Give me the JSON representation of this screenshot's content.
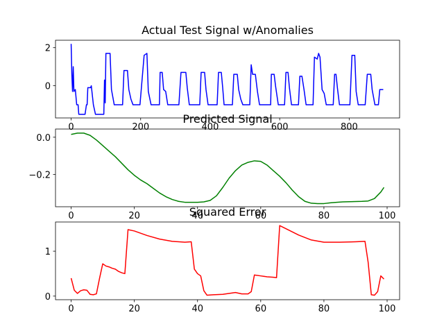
{
  "chart_data": [
    {
      "type": "line",
      "title": "Actual Test Signal w/Anomalies",
      "color": "#0000ff",
      "x": [
        0,
        2,
        4,
        6,
        8,
        12,
        16,
        20,
        22,
        40,
        44,
        46,
        48,
        56,
        58,
        64,
        70,
        94,
        96,
        98,
        100,
        112,
        116,
        124,
        148,
        152,
        162,
        166,
        172,
        178,
        198,
        210,
        218,
        222,
        230,
        254,
        256,
        262,
        266,
        272,
        278,
        310,
        316,
        330,
        334,
        340,
        370,
        374,
        384,
        388,
        394,
        420,
        424,
        432,
        436,
        440,
        464,
        468,
        478,
        482,
        488,
        494,
        514,
        518,
        522,
        530,
        536,
        542,
        574,
        576,
        584,
        588,
        596,
        614,
        618,
        624,
        628,
        634,
        654,
        658,
        664,
        670,
        676,
        696,
        700,
        708,
        712,
        716,
        722,
        728,
        734,
        754,
        758,
        762,
        766,
        772,
        802,
        808,
        816,
        820,
        826,
        846,
        852,
        862,
        866,
        874,
        884,
        888,
        898
      ],
      "values": [
        2.2,
        0.6,
        -0.3,
        1.0,
        -0.3,
        -0.2,
        -1.0,
        -1.0,
        -1.5,
        -1.5,
        -1.0,
        -1.0,
        -0.1,
        -0.1,
        0.0,
        -1.0,
        -1.5,
        -1.5,
        0.3,
        -0.9,
        1.7,
        1.7,
        -0.2,
        -1.0,
        -1.0,
        0.8,
        0.8,
        -0.2,
        -0.7,
        -1.0,
        -1.0,
        1.6,
        1.7,
        -0.3,
        -1.0,
        -1.0,
        0.7,
        0.7,
        -0.2,
        -0.3,
        -1.0,
        -1.0,
        0.7,
        0.7,
        -0.1,
        -1.0,
        -1.0,
        0.7,
        0.7,
        -0.2,
        -1.0,
        -1.0,
        0.7,
        0.7,
        -0.1,
        -1.0,
        -1.0,
        0.6,
        0.6,
        -0.2,
        -0.7,
        -1.0,
        -1.0,
        1.1,
        0.6,
        0.6,
        -0.3,
        -1.0,
        -1.0,
        0.6,
        0.6,
        0.0,
        -1.0,
        -1.0,
        0.7,
        0.7,
        -0.1,
        -1.0,
        -1.0,
        0.5,
        0.5,
        -0.2,
        -1.0,
        -1.0,
        1.5,
        1.4,
        1.7,
        1.5,
        -0.2,
        -0.4,
        -1.0,
        -1.0,
        0.6,
        0.6,
        -0.1,
        -1.0,
        -1.0,
        1.6,
        1.6,
        -0.3,
        -1.0,
        -1.0,
        0.6,
        0.6,
        -0.2,
        -1.0,
        -1.0,
        -0.2,
        -0.2
      ],
      "xlim": [
        -45,
        945
      ],
      "ylim": [
        -1.69,
        2.39
      ],
      "xticks": [
        0,
        200,
        400,
        600,
        800
      ],
      "yticks": [
        0,
        2
      ]
    },
    {
      "type": "line",
      "title": "Predicted Signal",
      "color": "#008000",
      "x": [
        0,
        2,
        4,
        6,
        8,
        10,
        12,
        14,
        16,
        18,
        20,
        22,
        24,
        26,
        28,
        30,
        32,
        34,
        36,
        38,
        40,
        42,
        44,
        46,
        48,
        50,
        52,
        54,
        56,
        58,
        60,
        62,
        64,
        66,
        68,
        70,
        72,
        74,
        76,
        78,
        80,
        82,
        84,
        86,
        88,
        90,
        92,
        94,
        96,
        98,
        99
      ],
      "values": [
        0.015,
        0.022,
        0.022,
        0.01,
        -0.015,
        -0.045,
        -0.075,
        -0.105,
        -0.14,
        -0.175,
        -0.205,
        -0.23,
        -0.25,
        -0.275,
        -0.3,
        -0.32,
        -0.335,
        -0.345,
        -0.35,
        -0.35,
        -0.35,
        -0.348,
        -0.34,
        -0.315,
        -0.27,
        -0.22,
        -0.18,
        -0.15,
        -0.135,
        -0.127,
        -0.13,
        -0.15,
        -0.18,
        -0.21,
        -0.245,
        -0.285,
        -0.32,
        -0.345,
        -0.355,
        -0.357,
        -0.357,
        -0.353,
        -0.35,
        -0.348,
        -0.347,
        -0.346,
        -0.345,
        -0.343,
        -0.33,
        -0.295,
        -0.27
      ],
      "xlim": [
        -4.95,
        103.95
      ],
      "ylim": [
        -0.374,
        0.044
      ],
      "xticks": [
        0,
        20,
        40,
        60,
        80,
        100
      ],
      "yticks": [
        {
          "value": 0,
          "label": "0.0"
        },
        {
          "value": -0.2,
          "label": "−0.2"
        }
      ]
    },
    {
      "type": "line",
      "title": "Squared Error",
      "color": "#ff0000",
      "x": [
        0,
        1,
        2,
        3,
        4,
        5,
        6,
        7,
        8,
        9,
        10,
        11,
        12,
        13,
        14,
        15,
        16,
        17,
        18,
        20,
        24,
        28,
        32,
        36,
        38,
        39,
        40,
        41,
        42,
        43,
        45,
        48,
        52,
        54,
        56,
        57,
        58,
        60,
        62,
        64,
        65,
        66,
        68,
        72,
        76,
        80,
        85,
        90,
        93,
        94,
        95,
        96,
        97,
        98,
        99
      ],
      "values": [
        0.4,
        0.13,
        0.06,
        0.12,
        0.14,
        0.13,
        0.04,
        0.03,
        0.05,
        0.4,
        0.72,
        0.67,
        0.65,
        0.62,
        0.6,
        0.55,
        0.52,
        0.5,
        1.48,
        1.45,
        1.35,
        1.27,
        1.22,
        1.2,
        1.21,
        0.6,
        0.5,
        0.45,
        0.12,
        0.02,
        0.03,
        0.04,
        0.08,
        0.05,
        0.05,
        0.1,
        0.47,
        0.45,
        0.43,
        0.42,
        0.41,
        1.57,
        1.5,
        1.36,
        1.25,
        1.2,
        1.2,
        1.21,
        1.22,
        0.75,
        0.03,
        0.02,
        0.1,
        0.45,
        0.38
      ],
      "xlim": [
        -4.95,
        103.95
      ],
      "ylim": [
        -0.08,
        1.65
      ],
      "xticks": [
        0,
        20,
        40,
        60,
        80,
        100
      ],
      "yticks": [
        0,
        1
      ]
    }
  ]
}
